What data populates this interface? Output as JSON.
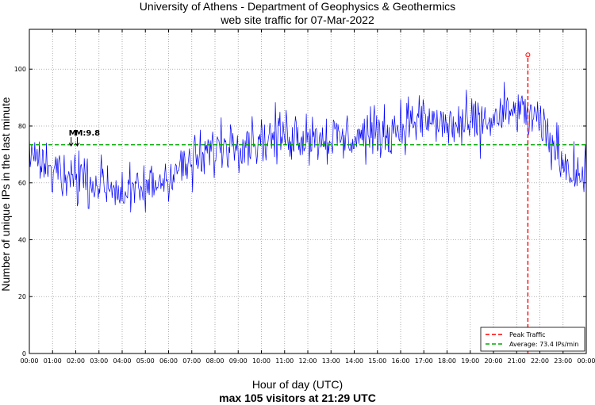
{
  "title_line1": "University of Athens - Department of Geophysics & Geothermics",
  "title_line2": "web site traffic for 07-Mar-2022",
  "xlabel": "Hour of day (UTC)",
  "summary": "max 105 visitors at 21:29 UTC",
  "ylabel": "Number of unique IPs in the last minute",
  "colors": {
    "series": "#0000ff",
    "peak": "#ff0000",
    "average": "#00aa00"
  },
  "chart_data": {
    "type": "line",
    "title": "University of Athens - Department of Geophysics & Geothermics\nweb site traffic for 07-Mar-2022",
    "xlabel": "Hour of day (UTC)",
    "ylabel": "Number of unique IPs in the last minute",
    "xlim": [
      "00:00",
      "24:00"
    ],
    "ylim": [
      0,
      114
    ],
    "grid": true,
    "legend_position": "bottom-right",
    "x_ticks": [
      "00:00",
      "01:00",
      "02:00",
      "03:00",
      "04:00",
      "05:00",
      "06:00",
      "07:00",
      "08:00",
      "09:00",
      "10:00",
      "11:00",
      "12:00",
      "13:00",
      "14:00",
      "15:00",
      "16:00",
      "17:00",
      "18:00",
      "19:00",
      "20:00",
      "21:00",
      "22:00",
      "23:00",
      "00:00"
    ],
    "y_ticks": [
      0,
      20,
      40,
      60,
      80,
      100
    ],
    "series": [
      {
        "name": "",
        "style": "solid",
        "color": "#0000ff",
        "resolution": "approx. 30-minute averages of a per-minute noisy trace",
        "x": [
          "00:00",
          "00:30",
          "01:00",
          "01:30",
          "02:00",
          "02:30",
          "03:00",
          "03:30",
          "04:00",
          "04:30",
          "05:00",
          "05:30",
          "06:00",
          "06:30",
          "07:00",
          "07:30",
          "08:00",
          "08:30",
          "09:00",
          "09:30",
          "10:00",
          "10:30",
          "11:00",
          "11:30",
          "12:00",
          "12:30",
          "13:00",
          "13:30",
          "14:00",
          "14:30",
          "15:00",
          "15:30",
          "16:00",
          "16:30",
          "17:00",
          "17:30",
          "18:00",
          "18:30",
          "19:00",
          "19:30",
          "20:00",
          "20:30",
          "21:00",
          "21:30",
          "22:00",
          "22:30",
          "23:00",
          "23:30",
          "24:00"
        ],
        "y": [
          72,
          68,
          64,
          63,
          63,
          61,
          60,
          59,
          57,
          56,
          58,
          60,
          63,
          65,
          67,
          69,
          72,
          74,
          75,
          75,
          75,
          76,
          77,
          77,
          77,
          76,
          76,
          75,
          76,
          77,
          77,
          78,
          80,
          82,
          82,
          81,
          80,
          80,
          80,
          81,
          82,
          84,
          85,
          84,
          80,
          74,
          68,
          64,
          61
        ]
      },
      {
        "name": "Peak Traffic",
        "style": "dashed",
        "color": "#ff0000",
        "x": [
          "21:29",
          "21:29"
        ],
        "y": [
          0,
          105
        ]
      },
      {
        "name": "Average: 73.4 IPs/min",
        "style": "dashed",
        "color": "#00aa00",
        "x": [
          "00:00",
          "24:00"
        ],
        "y": [
          73.4,
          73.4
        ]
      }
    ],
    "peak": {
      "x": "21:29",
      "y": 105
    },
    "annotations": [
      {
        "text": "M",
        "x": "01:48",
        "y": 73,
        "note": "arrow marker"
      },
      {
        "text": "M:9.8",
        "x": "02:04",
        "y": 73,
        "note": "arrow marker"
      }
    ]
  }
}
